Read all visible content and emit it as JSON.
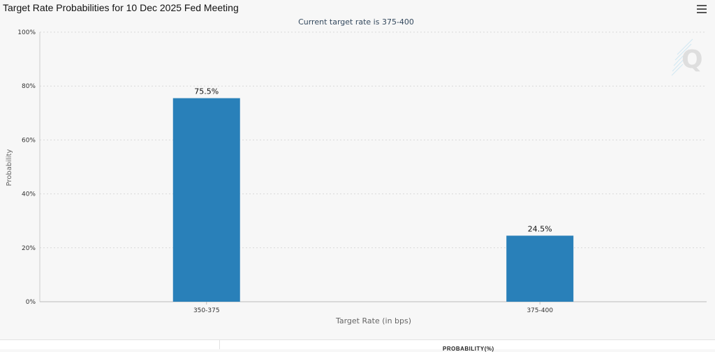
{
  "header": {
    "title": "Target Rate Probabilities for 10 Dec 2025 Fed Meeting",
    "menu_icon": "hamburger-menu-icon"
  },
  "chart_data": {
    "type": "bar",
    "title": "Target Rate Probabilities for 10 Dec 2025 Fed Meeting",
    "subtitle": "Current target rate is 375-400",
    "xlabel": "Target Rate (in bps)",
    "ylabel": "Probability",
    "categories": [
      "350-375",
      "375-400"
    ],
    "values": [
      75.5,
      24.5
    ],
    "data_labels": [
      "75.5%",
      "24.5%"
    ],
    "ylim": [
      0,
      100
    ],
    "yticks": [
      "0%",
      "20%",
      "40%",
      "60%",
      "80%",
      "100%"
    ],
    "grid": true,
    "bar_color": "#2980b9",
    "watermark_icon": "q-logo-icon"
  },
  "table_strip": {
    "header": "PROBABILITY(%)"
  }
}
